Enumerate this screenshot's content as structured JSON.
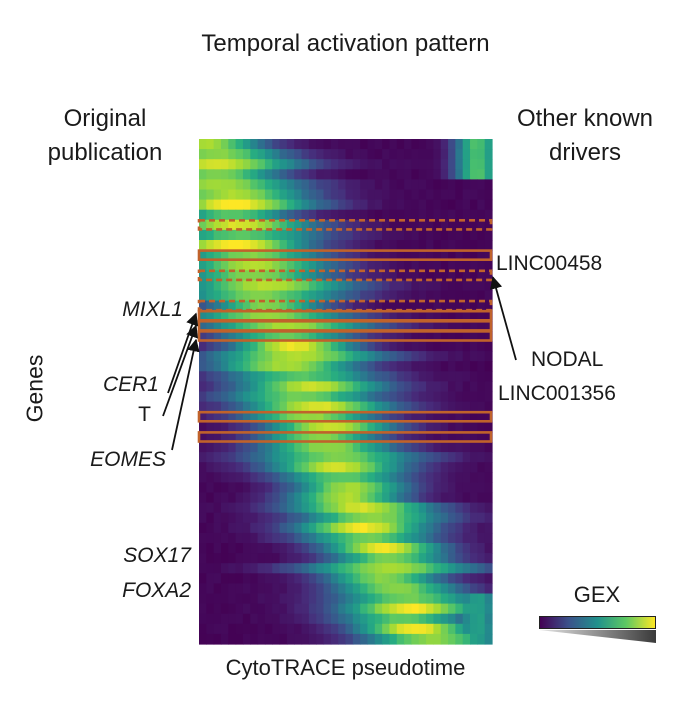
{
  "title": "Temporal activation pattern",
  "left_header": [
    "Original",
    "publication"
  ],
  "right_header": [
    "Other known",
    "drivers"
  ],
  "y_axis_label": "Genes",
  "x_axis_label": "CytoTRACE pseudotime",
  "legend": {
    "title": "GEX",
    "colors": [
      "#440154",
      "#3b528b",
      "#21918c",
      "#5ec962",
      "#fde725"
    ]
  },
  "highlight_color": "#c0622b",
  "original_publication_genes": [
    "MIXL1",
    "CER1",
    "T",
    "EOMES",
    "SOX17",
    "FOXA2"
  ],
  "other_known_drivers": [
    "LINC00458",
    "NODAL",
    "LINC001356"
  ],
  "chart_data": {
    "type": "heatmap",
    "colormap": "viridis",
    "rows": 50,
    "columns": 40,
    "x_label": "CytoTRACE pseudotime",
    "y_label": "Genes",
    "color_label": "GEX",
    "highlighted_rows": [
      {
        "gene": "LINC00458",
        "row": 8,
        "style": "dashed",
        "group": "other"
      },
      {
        "gene": "MIXL1",
        "row": 11,
        "style": "solid",
        "group": "original"
      },
      {
        "gene": "NODAL",
        "row": 13,
        "style": "dashed",
        "group": "other"
      },
      {
        "gene": "LINC001356",
        "row": 16,
        "style": "dashed",
        "group": "other"
      },
      {
        "gene": "CER1",
        "row": 17,
        "style": "solid",
        "group": "original"
      },
      {
        "gene": "T",
        "row": 18,
        "style": "solid",
        "group": "original"
      },
      {
        "gene": "EOMES",
        "row": 19,
        "style": "solid",
        "group": "original"
      },
      {
        "gene": "SOX17",
        "row": 27,
        "style": "solid",
        "group": "original"
      },
      {
        "gene": "FOXA2",
        "row": 29,
        "style": "solid",
        "group": "original"
      }
    ]
  }
}
